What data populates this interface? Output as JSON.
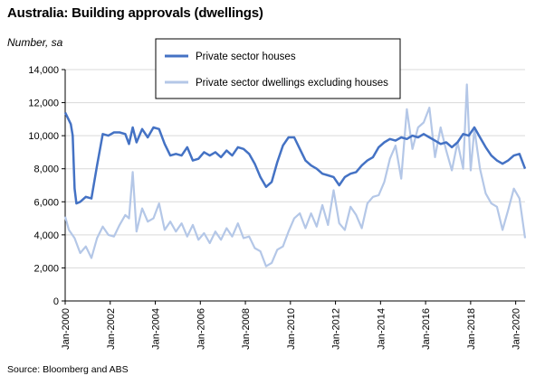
{
  "title": "Australia: Building approvals (dwellings)",
  "subtitle": "Number, sa",
  "source": "Source: Bloomberg and ABS",
  "chart_data": {
    "type": "line",
    "title": "Australia: Building approvals (dwellings)",
    "ylabel": "Number, sa",
    "xlabel": "",
    "ylim": [
      0,
      14000
    ],
    "yticks": [
      0,
      2000,
      4000,
      6000,
      8000,
      10000,
      12000,
      14000
    ],
    "ytick_labels": [
      "0",
      "2,000",
      "4,000",
      "6,000",
      "8,000",
      "10,000",
      "12,000",
      "14,000"
    ],
    "xlim": [
      "2000-01",
      "2020-06"
    ],
    "xticks": [
      "2000-01",
      "2002-01",
      "2004-01",
      "2006-01",
      "2008-01",
      "2010-01",
      "2012-01",
      "2014-01",
      "2016-01",
      "2018-01",
      "2020-01"
    ],
    "xtick_labels": [
      "Jan-2000",
      "Jan-2002",
      "Jan-2004",
      "Jan-2006",
      "Jan-2008",
      "Jan-2010",
      "Jan-2012",
      "Jan-2014",
      "Jan-2016",
      "Jan-2018",
      "Jan-2020"
    ],
    "grid": "horizontal",
    "legend": "top-center",
    "series": [
      {
        "name": "Private sector houses",
        "color": "#4472C4",
        "points": [
          [
            "2000-01",
            11400
          ],
          [
            "2000-04",
            10700
          ],
          [
            "2000-05",
            10000
          ],
          [
            "2000-06",
            6800
          ],
          [
            "2000-07",
            5900
          ],
          [
            "2000-09",
            6000
          ],
          [
            "2000-12",
            6300
          ],
          [
            "2001-03",
            6200
          ],
          [
            "2001-06",
            8200
          ],
          [
            "2001-09",
            10100
          ],
          [
            "2001-12",
            10000
          ],
          [
            "2002-03",
            10200
          ],
          [
            "2002-06",
            10200
          ],
          [
            "2002-09",
            10100
          ],
          [
            "2002-11",
            9500
          ],
          [
            "2003-01",
            10500
          ],
          [
            "2003-03",
            9600
          ],
          [
            "2003-06",
            10400
          ],
          [
            "2003-09",
            9900
          ],
          [
            "2003-12",
            10500
          ],
          [
            "2004-03",
            10400
          ],
          [
            "2004-06",
            9500
          ],
          [
            "2004-09",
            8800
          ],
          [
            "2004-12",
            8900
          ],
          [
            "2005-03",
            8800
          ],
          [
            "2005-06",
            9300
          ],
          [
            "2005-09",
            8500
          ],
          [
            "2005-12",
            8600
          ],
          [
            "2006-03",
            9000
          ],
          [
            "2006-06",
            8800
          ],
          [
            "2006-09",
            9000
          ],
          [
            "2006-12",
            8700
          ],
          [
            "2007-03",
            9100
          ],
          [
            "2007-06",
            8800
          ],
          [
            "2007-09",
            9300
          ],
          [
            "2007-12",
            9200
          ],
          [
            "2008-03",
            8900
          ],
          [
            "2008-06",
            8300
          ],
          [
            "2008-09",
            7500
          ],
          [
            "2008-12",
            6900
          ],
          [
            "2009-03",
            7200
          ],
          [
            "2009-06",
            8400
          ],
          [
            "2009-09",
            9400
          ],
          [
            "2009-12",
            9900
          ],
          [
            "2010-03",
            9900
          ],
          [
            "2010-06",
            9200
          ],
          [
            "2010-09",
            8500
          ],
          [
            "2010-12",
            8200
          ],
          [
            "2011-03",
            8000
          ],
          [
            "2011-06",
            7700
          ],
          [
            "2011-09",
            7600
          ],
          [
            "2011-12",
            7500
          ],
          [
            "2012-03",
            7000
          ],
          [
            "2012-06",
            7500
          ],
          [
            "2012-09",
            7700
          ],
          [
            "2012-12",
            7800
          ],
          [
            "2013-03",
            8200
          ],
          [
            "2013-06",
            8500
          ],
          [
            "2013-09",
            8700
          ],
          [
            "2013-12",
            9300
          ],
          [
            "2014-03",
            9600
          ],
          [
            "2014-06",
            9800
          ],
          [
            "2014-09",
            9700
          ],
          [
            "2014-12",
            9900
          ],
          [
            "2015-03",
            9800
          ],
          [
            "2015-06",
            10000
          ],
          [
            "2015-09",
            9900
          ],
          [
            "2015-12",
            10100
          ],
          [
            "2016-03",
            9900
          ],
          [
            "2016-06",
            9700
          ],
          [
            "2016-09",
            9500
          ],
          [
            "2016-12",
            9600
          ],
          [
            "2017-03",
            9300
          ],
          [
            "2017-06",
            9600
          ],
          [
            "2017-09",
            10100
          ],
          [
            "2017-12",
            10000
          ],
          [
            "2018-03",
            10500
          ],
          [
            "2018-06",
            9900
          ],
          [
            "2018-09",
            9300
          ],
          [
            "2018-12",
            8800
          ],
          [
            "2019-03",
            8500
          ],
          [
            "2019-06",
            8300
          ],
          [
            "2019-09",
            8500
          ],
          [
            "2019-12",
            8800
          ],
          [
            "2020-03",
            8900
          ],
          [
            "2020-06",
            8000
          ]
        ]
      },
      {
        "name": "Private sector dwellings excluding houses",
        "color": "#B4C7E7",
        "points": [
          [
            "2000-01",
            5100
          ],
          [
            "2000-03",
            4300
          ],
          [
            "2000-06",
            3800
          ],
          [
            "2000-09",
            2900
          ],
          [
            "2000-12",
            3300
          ],
          [
            "2001-03",
            2600
          ],
          [
            "2001-06",
            3800
          ],
          [
            "2001-09",
            4500
          ],
          [
            "2001-12",
            4000
          ],
          [
            "2002-03",
            3900
          ],
          [
            "2002-06",
            4600
          ],
          [
            "2002-09",
            5200
          ],
          [
            "2002-11",
            5000
          ],
          [
            "2003-01",
            7800
          ],
          [
            "2003-03",
            4200
          ],
          [
            "2003-06",
            5600
          ],
          [
            "2003-09",
            4800
          ],
          [
            "2003-12",
            5000
          ],
          [
            "2004-03",
            5900
          ],
          [
            "2004-06",
            4300
          ],
          [
            "2004-09",
            4800
          ],
          [
            "2004-12",
            4200
          ],
          [
            "2005-03",
            4700
          ],
          [
            "2005-06",
            3900
          ],
          [
            "2005-09",
            4600
          ],
          [
            "2005-12",
            3700
          ],
          [
            "2006-03",
            4100
          ],
          [
            "2006-06",
            3500
          ],
          [
            "2006-09",
            4200
          ],
          [
            "2006-12",
            3700
          ],
          [
            "2007-03",
            4400
          ],
          [
            "2007-06",
            3900
          ],
          [
            "2007-09",
            4700
          ],
          [
            "2007-12",
            3800
          ],
          [
            "2008-03",
            3900
          ],
          [
            "2008-06",
            3200
          ],
          [
            "2008-09",
            3000
          ],
          [
            "2008-12",
            2100
          ],
          [
            "2009-03",
            2300
          ],
          [
            "2009-06",
            3100
          ],
          [
            "2009-09",
            3300
          ],
          [
            "2009-12",
            4200
          ],
          [
            "2010-03",
            5000
          ],
          [
            "2010-06",
            5300
          ],
          [
            "2010-09",
            4400
          ],
          [
            "2010-12",
            5300
          ],
          [
            "2011-03",
            4500
          ],
          [
            "2011-06",
            5800
          ],
          [
            "2011-09",
            4600
          ],
          [
            "2011-12",
            6700
          ],
          [
            "2012-03",
            4700
          ],
          [
            "2012-06",
            4300
          ],
          [
            "2012-09",
            5700
          ],
          [
            "2012-12",
            5200
          ],
          [
            "2013-03",
            4400
          ],
          [
            "2013-06",
            5900
          ],
          [
            "2013-09",
            6300
          ],
          [
            "2013-12",
            6400
          ],
          [
            "2014-03",
            7200
          ],
          [
            "2014-06",
            8600
          ],
          [
            "2014-09",
            9400
          ],
          [
            "2014-12",
            7400
          ],
          [
            "2015-03",
            11600
          ],
          [
            "2015-06",
            9200
          ],
          [
            "2015-09",
            10500
          ],
          [
            "2015-12",
            10800
          ],
          [
            "2016-03",
            11700
          ],
          [
            "2016-06",
            8700
          ],
          [
            "2016-09",
            10500
          ],
          [
            "2016-12",
            9100
          ],
          [
            "2017-03",
            7900
          ],
          [
            "2017-06",
            9600
          ],
          [
            "2017-09",
            8000
          ],
          [
            "2017-11",
            13100
          ],
          [
            "2018-01",
            7900
          ],
          [
            "2018-03",
            10400
          ],
          [
            "2018-06",
            8000
          ],
          [
            "2018-09",
            6500
          ],
          [
            "2018-12",
            5900
          ],
          [
            "2019-03",
            5700
          ],
          [
            "2019-06",
            4300
          ],
          [
            "2019-09",
            5500
          ],
          [
            "2019-12",
            6800
          ],
          [
            "2020-03",
            6200
          ],
          [
            "2020-06",
            3800
          ]
        ]
      }
    ]
  }
}
